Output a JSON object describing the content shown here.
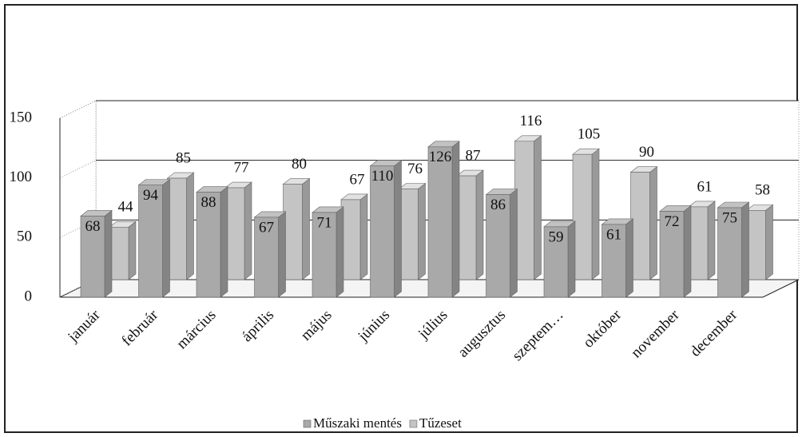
{
  "chart_data": {
    "type": "bar3d",
    "categories": [
      "január",
      "február",
      "március",
      "április",
      "május",
      "június",
      "július",
      "augusztus",
      "szeptem…",
      "október",
      "november",
      "december"
    ],
    "series": [
      {
        "name": "Műszaki mentés",
        "color": "#a9a9a9",
        "values": [
          68,
          94,
          88,
          67,
          71,
          110,
          126,
          86,
          59,
          61,
          72,
          75
        ]
      },
      {
        "name": "Tűzeset",
        "color": "#c4c4c4",
        "values": [
          44,
          85,
          77,
          80,
          67,
          76,
          87,
          116,
          105,
          90,
          61,
          58
        ]
      }
    ],
    "ylim": [
      0,
      150
    ],
    "yticks": [
      0,
      50,
      100,
      150
    ],
    "grid": true,
    "legend": "bottom"
  }
}
